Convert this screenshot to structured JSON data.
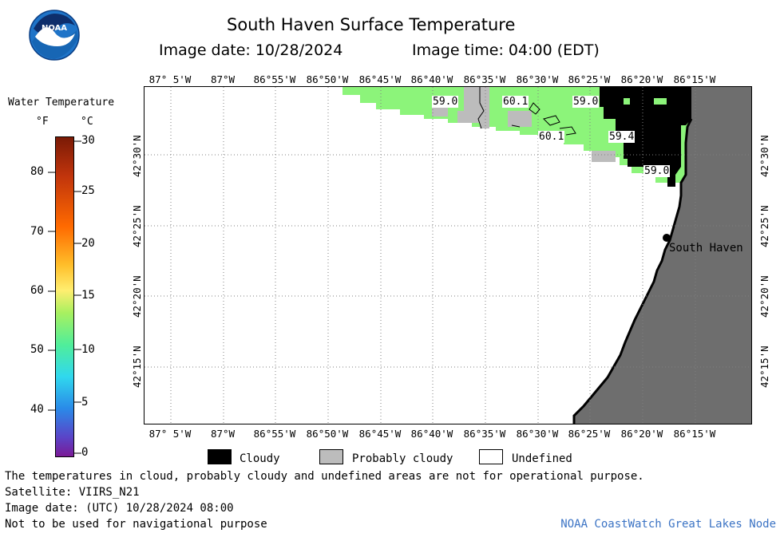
{
  "header": {
    "title": "South Haven Surface Temperature",
    "image_date": "Image date: 10/28/2024",
    "image_time": "Image time: 04:00 (EDT)",
    "logo_text": "NOAA"
  },
  "scale": {
    "title": "Water Temperature",
    "unit_f": "°F",
    "unit_c": "°C",
    "f_ticks": [
      "80",
      "70",
      "60",
      "50",
      "40"
    ],
    "c_ticks": [
      "30",
      "25",
      "20",
      "15",
      "10",
      "5",
      "0"
    ]
  },
  "map": {
    "lon_labels": [
      "87° 5'W",
      "87°W",
      "86°55'W",
      "86°50'W",
      "86°45'W",
      "86°40'W",
      "86°35'W",
      "86°30'W",
      "86°25'W",
      "86°20'W",
      "86°15'W"
    ],
    "lat_labels": [
      "42°30'N",
      "42°25'N",
      "42°20'N",
      "42°15'N"
    ],
    "temp_labels": [
      "59.0",
      "60.1",
      "59.0",
      "60.1",
      "59.4",
      "59.0"
    ],
    "city": "South Haven",
    "colors": {
      "land": "#6e6e6e",
      "water_60f": "#8cf47a",
      "cloudy": "#000000",
      "probably_cloudy": "#bcbcbc",
      "undefined": "#ffffff"
    }
  },
  "legend": {
    "cloudy": "Cloudy",
    "probably_cloudy": "Probably cloudy",
    "undefined": "Undefined"
  },
  "footer": {
    "disclaimer": "The temperatures in cloud, probably cloudy and undefined areas are not for operational purpose.",
    "satellite": "Satellite: VIIRS_N21",
    "utc_date": "Image date: (UTC) 10/28/2024  08:00",
    "navigation": "Not to be used for navigational purpose",
    "credit": "NOAA CoastWatch Great Lakes Node"
  }
}
